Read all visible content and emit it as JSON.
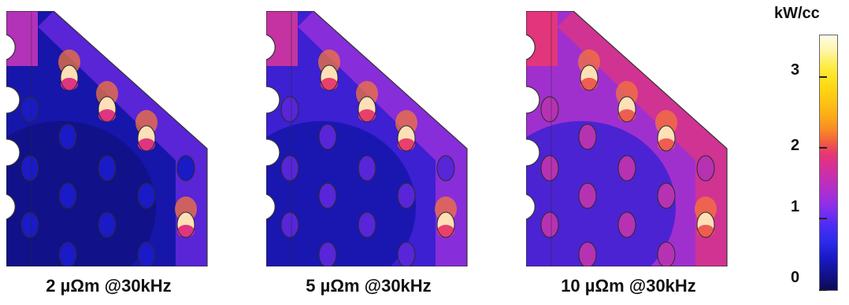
{
  "panels": [
    {
      "caption": "2 µΩm @30kHz",
      "fill_level": 0.18
    },
    {
      "caption": "5 µΩm @30kHz",
      "fill_level": 0.38
    },
    {
      "caption": "10 µΩm @30kHz",
      "fill_level": 0.72
    }
  ],
  "colorbar": {
    "unit": "kW/cc",
    "ticks": [
      {
        "label": "0",
        "value": 0
      },
      {
        "label": "1",
        "value": 1
      },
      {
        "label": "2",
        "value": 2
      },
      {
        "label": "3",
        "value": 3
      }
    ],
    "range": [
      0,
      3.6
    ],
    "colors": {
      "min": "#0b0b55",
      "low": "#1a1ac8",
      "mid": "#8c2fe8",
      "high": "#e53578",
      "hot": "#f98a25",
      "max": "#fffce8"
    }
  }
}
